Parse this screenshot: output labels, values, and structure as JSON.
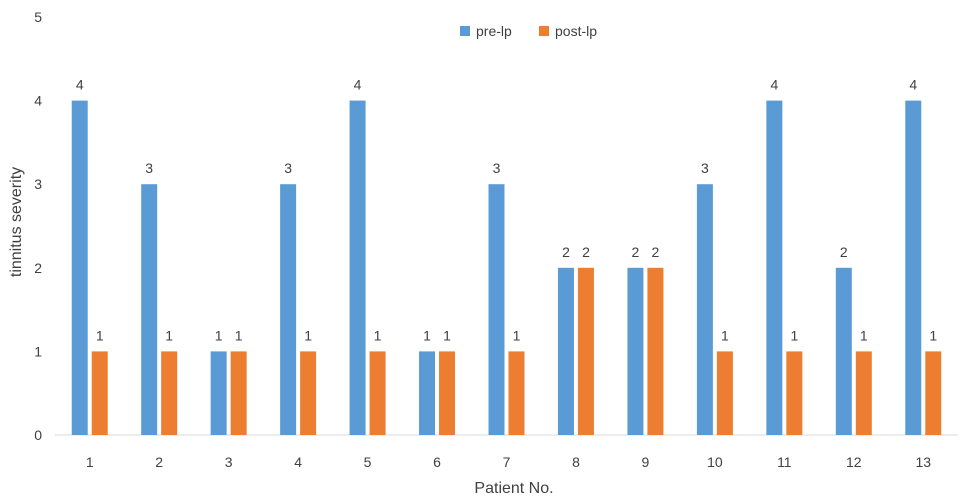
{
  "chart_data": {
    "type": "bar",
    "title": "",
    "xlabel": "Patient No.",
    "ylabel": "tinnitus severity",
    "ylim": [
      0,
      5
    ],
    "yticks": [
      "0",
      "1",
      "2",
      "3",
      "4",
      "5"
    ],
    "grid": false,
    "legend_position": "top-center",
    "categories": [
      "1",
      "2",
      "3",
      "4",
      "5",
      "6",
      "7",
      "8",
      "9",
      "10",
      "11",
      "12",
      "13"
    ],
    "series": [
      {
        "name": "pre-lp",
        "color": "#5B9BD5",
        "values": [
          4,
          3,
          1,
          3,
          4,
          1,
          3,
          2,
          2,
          3,
          4,
          2,
          4
        ]
      },
      {
        "name": "post-lp",
        "color": "#ED7D31",
        "values": [
          1,
          1,
          1,
          1,
          1,
          1,
          1,
          2,
          2,
          1,
          1,
          1,
          1
        ]
      }
    ],
    "data_labels": true
  }
}
